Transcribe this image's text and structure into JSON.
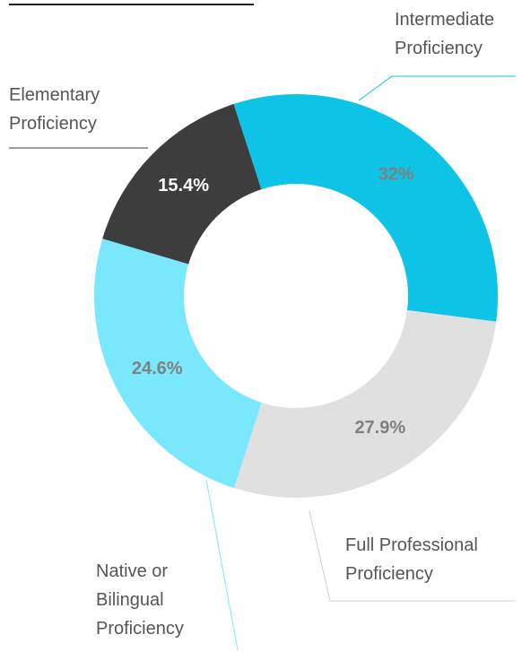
{
  "chart_data": {
    "type": "pie",
    "categories": [
      "Intermediate Proficiency",
      "Full Professional Proficiency",
      "Native or Bilingual Proficiency",
      "Elementary Proficiency"
    ],
    "values": [
      32,
      27.9,
      24.6,
      15.4
    ],
    "value_labels": [
      "32%",
      "27.9%",
      "24.6%",
      "15.4%"
    ],
    "colors": [
      "#0ec4e6",
      "#e0e0e0",
      "#7ae8fc",
      "#3d3d3d"
    ]
  }
}
